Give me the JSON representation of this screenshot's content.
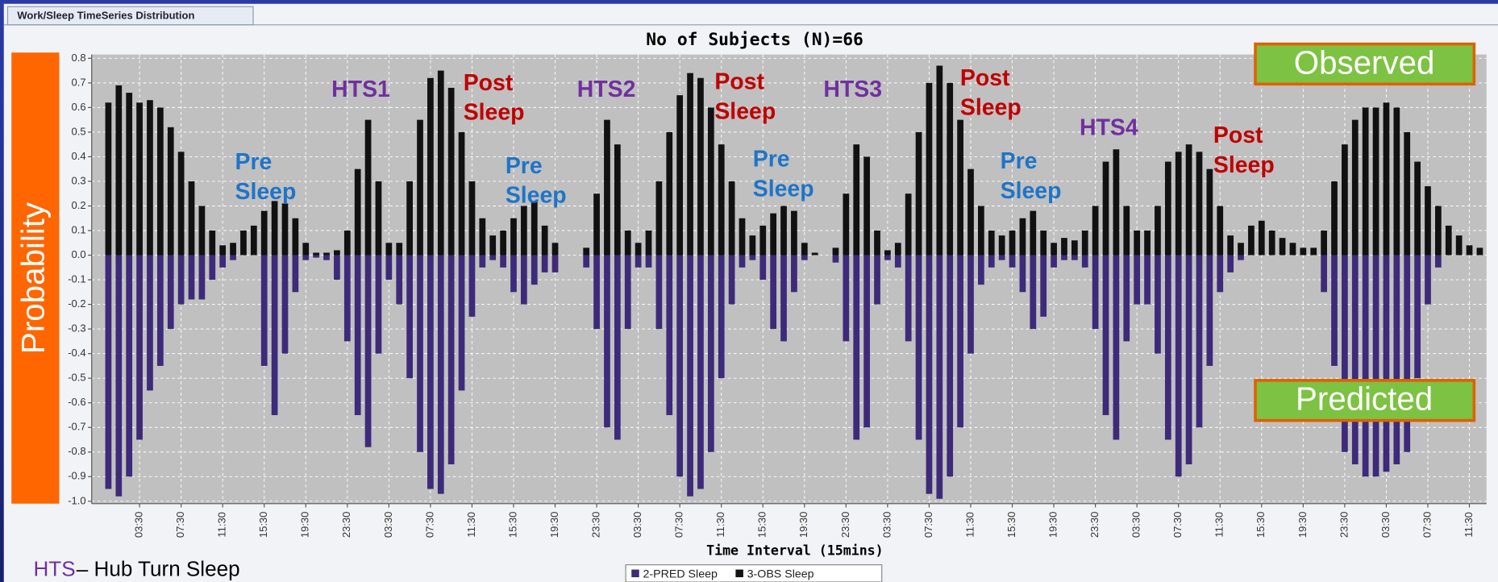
{
  "tab": "Work/Sleep TimeSeries Distribution",
  "callouts": [
    "Observed",
    "Predicted"
  ],
  "footnote": {
    "abbr": "HTS",
    "text": "– Hub Turn Sleep"
  },
  "annotations": [
    {
      "lines": [
        "Pre",
        "Sleep"
      ],
      "color": "#1f74c8"
    },
    {
      "lines": [
        "HTS1"
      ],
      "color": "#7030a0"
    },
    {
      "lines": [
        "Post",
        "Sleep"
      ],
      "color": "#c00000"
    },
    {
      "lines": [
        "Pre",
        "Sleep"
      ],
      "color": "#1f74c8"
    },
    {
      "lines": [
        "HTS2"
      ],
      "color": "#7030a0"
    },
    {
      "lines": [
        "Post",
        "Sleep"
      ],
      "color": "#c00000"
    },
    {
      "lines": [
        "Pre",
        "Sleep"
      ],
      "color": "#1f74c8"
    },
    {
      "lines": [
        "HTS3"
      ],
      "color": "#7030a0"
    },
    {
      "lines": [
        "Post",
        "Sleep"
      ],
      "color": "#c00000"
    },
    {
      "lines": [
        "Pre",
        "Sleep"
      ],
      "color": "#1f74c8"
    },
    {
      "lines": [
        "HTS4"
      ],
      "color": "#7030a0"
    },
    {
      "lines": [
        "Post",
        "Sleep"
      ],
      "color": "#c00000"
    }
  ],
  "chart_data": {
    "type": "bar",
    "title": "No of Subjects (N)=66",
    "x_label": "Time Interval (15mins)",
    "y_label": "Probability",
    "grid": true,
    "ylim": [
      -1.0,
      0.8
    ],
    "yticks": [
      {
        "value": -1,
        "label": "-1.0"
      },
      -0.9,
      -0.8,
      -0.7,
      -0.6,
      -0.5,
      -0.4,
      -0.3,
      -0.2,
      -0.1,
      {
        "value": 0,
        "label": "0.0"
      },
      0.1,
      0.2,
      0.3,
      0.4,
      0.5,
      0.6,
      0.7,
      0.8
    ],
    "categories": [
      null,
      null,
      null,
      "03:30",
      null,
      null,
      null,
      "07:30",
      null,
      null,
      null,
      "11:30",
      null,
      null,
      null,
      "15:30",
      null,
      null,
      null,
      "19:30",
      null,
      null,
      null,
      "23:30",
      null,
      null,
      null,
      "03:30",
      null,
      null,
      null,
      "07:30",
      null,
      null,
      null,
      "11:30",
      null,
      null,
      null,
      "15:30",
      null,
      null,
      null,
      "19:30",
      null,
      null,
      null,
      "23:30",
      null,
      null,
      null,
      "03:30",
      null,
      null,
      null,
      "07:30",
      null,
      null,
      null,
      "11:30",
      null,
      null,
      null,
      "15:30",
      null,
      null,
      null,
      "19:30",
      null,
      null,
      null,
      "23:30",
      null,
      null,
      null,
      "03:30",
      null,
      null,
      null,
      "07:30",
      null,
      null,
      null,
      "11:30",
      null,
      null,
      null,
      "15:30",
      null,
      null,
      null,
      "19:30",
      null,
      null,
      null,
      "23:30",
      null,
      null,
      null,
      "03:30",
      null,
      null,
      null,
      "07:30",
      null,
      null,
      null,
      "11:30",
      null,
      null,
      null,
      "15:30",
      null,
      null,
      null,
      "19:30",
      null,
      null,
      null,
      "23:30",
      null,
      null,
      null,
      "03:30",
      null,
      null,
      null,
      "07:30",
      null,
      null,
      null,
      "11:30",
      null
    ],
    "series": [
      {
        "name": "2-PRED Sleep",
        "color": "#3d2a7a",
        "values": [
          -0.95,
          -0.98,
          -0.9,
          -0.75,
          -0.55,
          -0.45,
          -0.3,
          -0.2,
          -0.18,
          -0.18,
          -0.1,
          -0.05,
          -0.02,
          0,
          0,
          -0.45,
          -0.65,
          -0.4,
          -0.15,
          -0.02,
          -0.01,
          -0.02,
          -0.1,
          -0.35,
          -0.65,
          -0.78,
          -0.4,
          -0.1,
          -0.2,
          -0.5,
          -0.8,
          -0.95,
          -0.97,
          -0.85,
          -0.55,
          -0.25,
          -0.05,
          -0.02,
          -0.05,
          -0.15,
          -0.2,
          -0.12,
          -0.07,
          -0.07,
          0,
          0,
          -0.05,
          -0.3,
          -0.7,
          -0.75,
          -0.3,
          -0.05,
          -0.05,
          -0.3,
          -0.65,
          -0.9,
          -0.98,
          -0.95,
          -0.8,
          -0.5,
          -0.2,
          -0.05,
          -0.02,
          -0.1,
          -0.3,
          -0.35,
          -0.15,
          -0.02,
          0,
          0,
          -0.03,
          -0.35,
          -0.75,
          -0.7,
          -0.2,
          -0.02,
          -0.05,
          -0.35,
          -0.75,
          -0.97,
          -0.99,
          -0.9,
          -0.7,
          -0.4,
          -0.12,
          -0.05,
          -0.02,
          -0.05,
          -0.15,
          -0.3,
          -0.25,
          -0.05,
          -0.02,
          -0.02,
          -0.05,
          -0.3,
          -0.65,
          -0.75,
          -0.35,
          -0.2,
          -0.2,
          -0.4,
          -0.75,
          -0.9,
          -0.85,
          -0.7,
          -0.45,
          -0.15,
          -0.07,
          -0.02,
          0,
          0,
          0,
          0,
          0,
          0,
          0,
          -0.15,
          -0.45,
          -0.8,
          -0.85,
          -0.9,
          -0.9,
          -0.88,
          -0.85,
          -0.8,
          -0.5,
          -0.2,
          -0.05,
          0,
          0,
          0,
          0
        ]
      },
      {
        "name": "3-OBS Sleep",
        "color": "#111111",
        "values": [
          0.62,
          0.69,
          0.66,
          0.62,
          0.63,
          0.6,
          0.52,
          0.42,
          0.3,
          0.2,
          0.1,
          0.04,
          0.05,
          0.1,
          0.12,
          0.18,
          0.22,
          0.21,
          0.15,
          0.05,
          0.01,
          0.01,
          0.02,
          0.1,
          0.35,
          0.55,
          0.3,
          0.05,
          0.05,
          0.3,
          0.55,
          0.72,
          0.75,
          0.68,
          0.5,
          0.3,
          0.15,
          0.08,
          0.1,
          0.15,
          0.2,
          0.22,
          0.12,
          0.05,
          0,
          0,
          0.03,
          0.25,
          0.55,
          0.45,
          0.1,
          0.05,
          0.1,
          0.3,
          0.5,
          0.65,
          0.74,
          0.72,
          0.6,
          0.45,
          0.3,
          0.15,
          0.08,
          0.12,
          0.17,
          0.2,
          0.18,
          0.05,
          0.01,
          0,
          0.03,
          0.25,
          0.45,
          0.4,
          0.1,
          0.02,
          0.05,
          0.25,
          0.5,
          0.7,
          0.77,
          0.7,
          0.55,
          0.35,
          0.2,
          0.1,
          0.08,
          0.1,
          0.15,
          0.18,
          0.1,
          0.05,
          0.07,
          0.06,
          0.1,
          0.2,
          0.38,
          0.43,
          0.2,
          0.1,
          0.1,
          0.2,
          0.38,
          0.42,
          0.45,
          0.42,
          0.35,
          0.2,
          0.08,
          0.05,
          0.12,
          0.14,
          0.1,
          0.07,
          0.05,
          0.03,
          0.03,
          0.1,
          0.3,
          0.45,
          0.55,
          0.6,
          0.6,
          0.62,
          0.6,
          0.5,
          0.38,
          0.28,
          0.2,
          0.12,
          0.08,
          0.04,
          0.03
        ]
      }
    ]
  }
}
